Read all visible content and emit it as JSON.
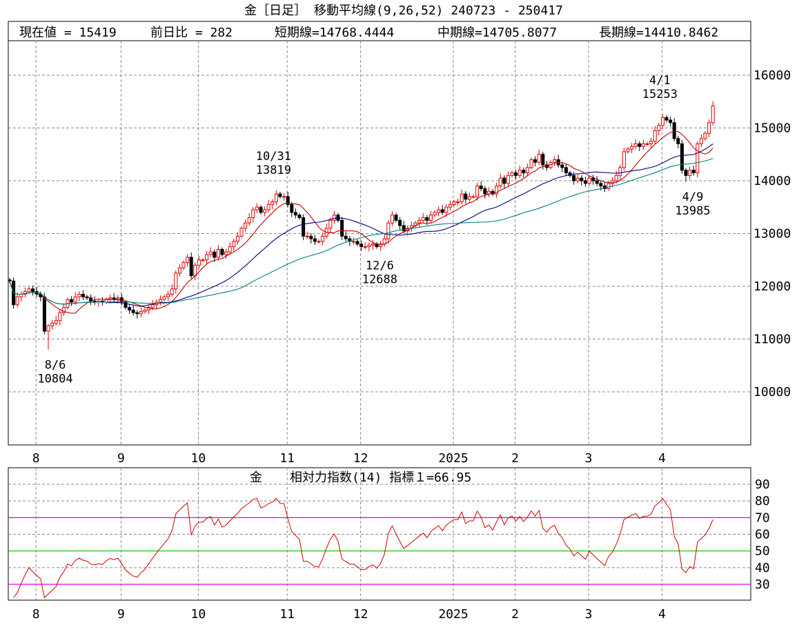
{
  "header": {
    "title": "金［日足］ 移動平均線(9,26,52)  240723 - 250417"
  },
  "info": {
    "current": "現在値 = 15419",
    "change": "前日比 = 282",
    "short_ma": "短期線=14768.4444",
    "mid_ma": "中期線=14705.8077",
    "long_ma": "長期線=14410.8462"
  },
  "rsi_header": {
    "symbol": "金",
    "label": "相対力指数(14) 指標１=66.95"
  },
  "colors": {
    "up": "#e00000",
    "down": "#000000",
    "ma_short": "#c00000",
    "ma_mid": "#000080",
    "ma_long": "#008080",
    "rsi": "#d00000",
    "rsi_70_30": "#e000e0",
    "rsi_50": "#00c000"
  },
  "chart_data": [
    {
      "type": "candlestick",
      "title": "金［日足］ 移動平均線(9,26,52)",
      "period": "240723 - 250417",
      "ylim": [
        9000,
        16700
      ],
      "y_ticks": [
        "16000",
        "15000",
        "14000",
        "13000",
        "12000",
        "11000",
        "10000"
      ],
      "x_month_labels": [
        {
          "label": "8",
          "index": 7
        },
        {
          "label": "9",
          "index": 29
        },
        {
          "label": "10",
          "index": 49
        },
        {
          "label": "11",
          "index": 72
        },
        {
          "label": "12",
          "index": 91
        },
        {
          "label": "2025",
          "index": 115
        },
        {
          "label": "2",
          "index": 131
        },
        {
          "label": "3",
          "index": 150
        },
        {
          "label": "4",
          "index": 169
        }
      ],
      "ma_periods": [
        9,
        26,
        52
      ],
      "closes": [
        12100,
        11650,
        11800,
        11850,
        11900,
        11950,
        11900,
        11850,
        11800,
        11150,
        11250,
        11300,
        11350,
        11500,
        11600,
        11750,
        11700,
        11800,
        11850,
        11800,
        11780,
        11720,
        11700,
        11720,
        11700,
        11750,
        11780,
        11760,
        11780,
        11700,
        11600,
        11550,
        11500,
        11480,
        11520,
        11550,
        11600,
        11650,
        11700,
        11750,
        11800,
        11850,
        11950,
        12250,
        12350,
        12450,
        12550,
        12200,
        12400,
        12500,
        12500,
        12600,
        12650,
        12550,
        12700,
        12600,
        12650,
        12750,
        12850,
        12950,
        13100,
        13200,
        13300,
        13450,
        13500,
        13400,
        13450,
        13550,
        13600,
        13750,
        13700,
        13700,
        13550,
        13400,
        13350,
        13300,
        12950,
        12950,
        12900,
        12850,
        12850,
        12950,
        13100,
        13250,
        13350,
        13250,
        12950,
        12900,
        12850,
        12850,
        12800,
        12750,
        12750,
        12780,
        12800,
        12750,
        12800,
        12900,
        13200,
        13350,
        13250,
        13150,
        13050,
        13100,
        13150,
        13200,
        13250,
        13300,
        13250,
        13350,
        13400,
        13450,
        13400,
        13500,
        13550,
        13600,
        13600,
        13750,
        13650,
        13700,
        13700,
        13900,
        13850,
        13750,
        13800,
        13750,
        13900,
        14050,
        13950,
        14100,
        14150,
        14100,
        14200,
        14150,
        14250,
        14400,
        14350,
        14500,
        14300,
        14250,
        14350,
        14400,
        14300,
        14250,
        14150,
        14100,
        14000,
        14050,
        14000,
        13950,
        14050,
        14000,
        13950,
        13900,
        13850,
        13950,
        14000,
        14100,
        14250,
        14550,
        14600,
        14650,
        14700,
        14650,
        14700,
        14700,
        14750,
        14950,
        15050,
        15200,
        15150,
        15100,
        14800,
        14700,
        14200,
        14100,
        14200,
        14150,
        14700,
        14800,
        14900,
        15100,
        15419
      ],
      "annotations": [
        {
          "index": 10,
          "date": "8/6",
          "value": "10804",
          "price": 10804,
          "kind": "low"
        },
        {
          "index": 69,
          "date": "10/31",
          "value": "13819",
          "price": 13819,
          "kind": "high"
        },
        {
          "index": 94,
          "date": "12/6",
          "value": "12688",
          "price": 12688,
          "kind": "low"
        },
        {
          "index": 169,
          "date": "4/1",
          "value": "15253",
          "price": 15253,
          "kind": "high"
        },
        {
          "index": 175,
          "date": "4/9",
          "value": "13985",
          "price": 13985,
          "kind": "low"
        }
      ]
    },
    {
      "type": "line",
      "title": "相対力指数(14)",
      "period": 14,
      "ylim": [
        20,
        98
      ],
      "y_ticks": [
        "90",
        "80",
        "70",
        "60",
        "50",
        "40",
        "30"
      ],
      "reference_lines": [
        70,
        50,
        30
      ],
      "last_value": 66.95
    }
  ]
}
